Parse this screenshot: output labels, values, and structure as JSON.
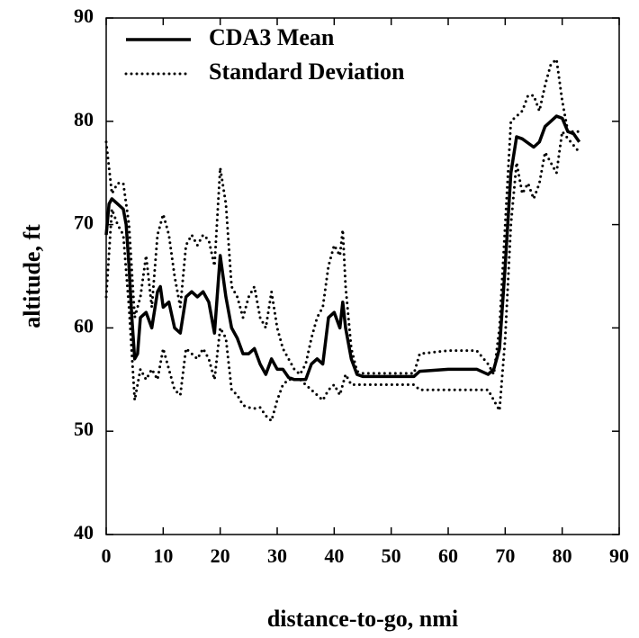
{
  "chart_data": {
    "type": "line",
    "xlabel": "distance-to-go, nmi",
    "ylabel": "altitude, ft",
    "xlim": [
      0,
      90
    ],
    "ylim": [
      40,
      90
    ],
    "xticks": [
      0,
      10,
      20,
      30,
      40,
      50,
      60,
      70,
      80,
      90
    ],
    "yticks": [
      40,
      50,
      60,
      70,
      80,
      90
    ],
    "legend": "upper-left",
    "series": [
      {
        "name": "CDA3 Mean",
        "color": "#000000",
        "style": "solid",
        "x": [
          0,
          0.5,
          1,
          2,
          3,
          3.5,
          4,
          4.5,
          5,
          5.5,
          6,
          7,
          8,
          9,
          9.5,
          10,
          11,
          12,
          13,
          14,
          15,
          16,
          17,
          18,
          19,
          20,
          21,
          22,
          23,
          24,
          25,
          26,
          27,
          28,
          29,
          30,
          31,
          32,
          33,
          34,
          35,
          36,
          37,
          38,
          39,
          40,
          41,
          41.5,
          42,
          43,
          44,
          45,
          50,
          54,
          55,
          60,
          65,
          67,
          68,
          69,
          70,
          71,
          72,
          73,
          75,
          76,
          77,
          79,
          80,
          81,
          82,
          83
        ],
        "values": [
          69,
          72,
          72.5,
          72,
          71.5,
          70,
          66,
          61,
          57,
          57.5,
          61,
          61.5,
          60,
          63.5,
          64,
          62,
          62.5,
          60,
          59.5,
          63,
          63.5,
          63,
          63.5,
          62.5,
          59.5,
          67,
          63,
          60,
          59,
          57.5,
          57.5,
          58,
          56.5,
          55.5,
          57,
          56,
          56,
          55.2,
          55,
          55,
          55,
          56.5,
          57,
          56.5,
          61,
          61.5,
          60,
          62.5,
          60,
          57,
          55.5,
          55.3,
          55.3,
          55.3,
          55.8,
          56,
          56,
          55.5,
          56,
          58,
          66,
          75,
          78.5,
          78.3,
          77.5,
          78,
          79.5,
          80.5,
          80.3,
          79,
          78.8,
          78
        ]
      },
      {
        "name": "Standard Deviation",
        "color": "#000000",
        "style": "dotted",
        "x": [
          0,
          1,
          2,
          3,
          4,
          5,
          6,
          7,
          8,
          9,
          10,
          11,
          12,
          13,
          14,
          15,
          16,
          17,
          18,
          19,
          20,
          21,
          22,
          23,
          24,
          25,
          26,
          27,
          28,
          29,
          30,
          31,
          32,
          33,
          34,
          35,
          36,
          37,
          38,
          39,
          40,
          41,
          41.5,
          42,
          43,
          44,
          45,
          54,
          55,
          60,
          65,
          67,
          68,
          69,
          70,
          71,
          72,
          73,
          74,
          75,
          76,
          77,
          78,
          79,
          80,
          81,
          83
        ],
        "values": [
          78,
          73,
          74,
          74,
          70,
          61,
          63,
          67,
          62,
          69,
          71,
          69,
          65,
          62,
          68,
          69,
          68,
          69,
          68.5,
          66,
          75.5,
          72,
          64,
          63,
          61,
          63,
          64,
          61,
          60,
          63.5,
          60,
          58,
          57,
          56,
          55.5,
          56.5,
          59,
          61,
          62,
          66,
          68,
          67,
          69.5,
          64,
          58,
          55.8,
          55.6,
          55.6,
          57.5,
          57.8,
          57.8,
          56.5,
          55.5,
          60,
          70,
          80,
          80.5,
          81,
          82.5,
          82.5,
          81,
          83.5,
          85.5,
          86,
          82,
          79,
          79
        ]
      },
      {
        "color": "#000000",
        "style": "dotted",
        "x": [
          0,
          1,
          2,
          3,
          4,
          5,
          6,
          7,
          8,
          9,
          10,
          11,
          12,
          13,
          14,
          15,
          16,
          17,
          18,
          19,
          20,
          21,
          22,
          23,
          24,
          25,
          26,
          27,
          28,
          29,
          30,
          31,
          32,
          33,
          34,
          35,
          36,
          37,
          38,
          39,
          40,
          41,
          42,
          43,
          44,
          54,
          55,
          60,
          65,
          67,
          68,
          69,
          70,
          71,
          72,
          73,
          74,
          75,
          76,
          77,
          78,
          79,
          80,
          83
        ],
        "values": [
          63,
          71.5,
          70,
          69,
          62,
          53,
          56,
          55,
          56,
          55,
          58,
          56,
          54,
          53.5,
          58,
          57.5,
          57,
          58,
          57,
          55,
          60,
          59,
          54,
          53.5,
          52.5,
          52.3,
          52.2,
          52.3,
          51.5,
          51,
          53,
          54.5,
          55,
          55,
          55,
          54.5,
          54,
          53.5,
          53,
          54,
          54.5,
          53.5,
          55.5,
          54.5,
          54.5,
          54.5,
          54,
          54,
          54,
          54,
          53,
          52,
          59,
          70,
          76,
          73,
          74,
          72.5,
          74,
          77,
          76,
          75,
          79,
          77
        ]
      }
    ]
  }
}
